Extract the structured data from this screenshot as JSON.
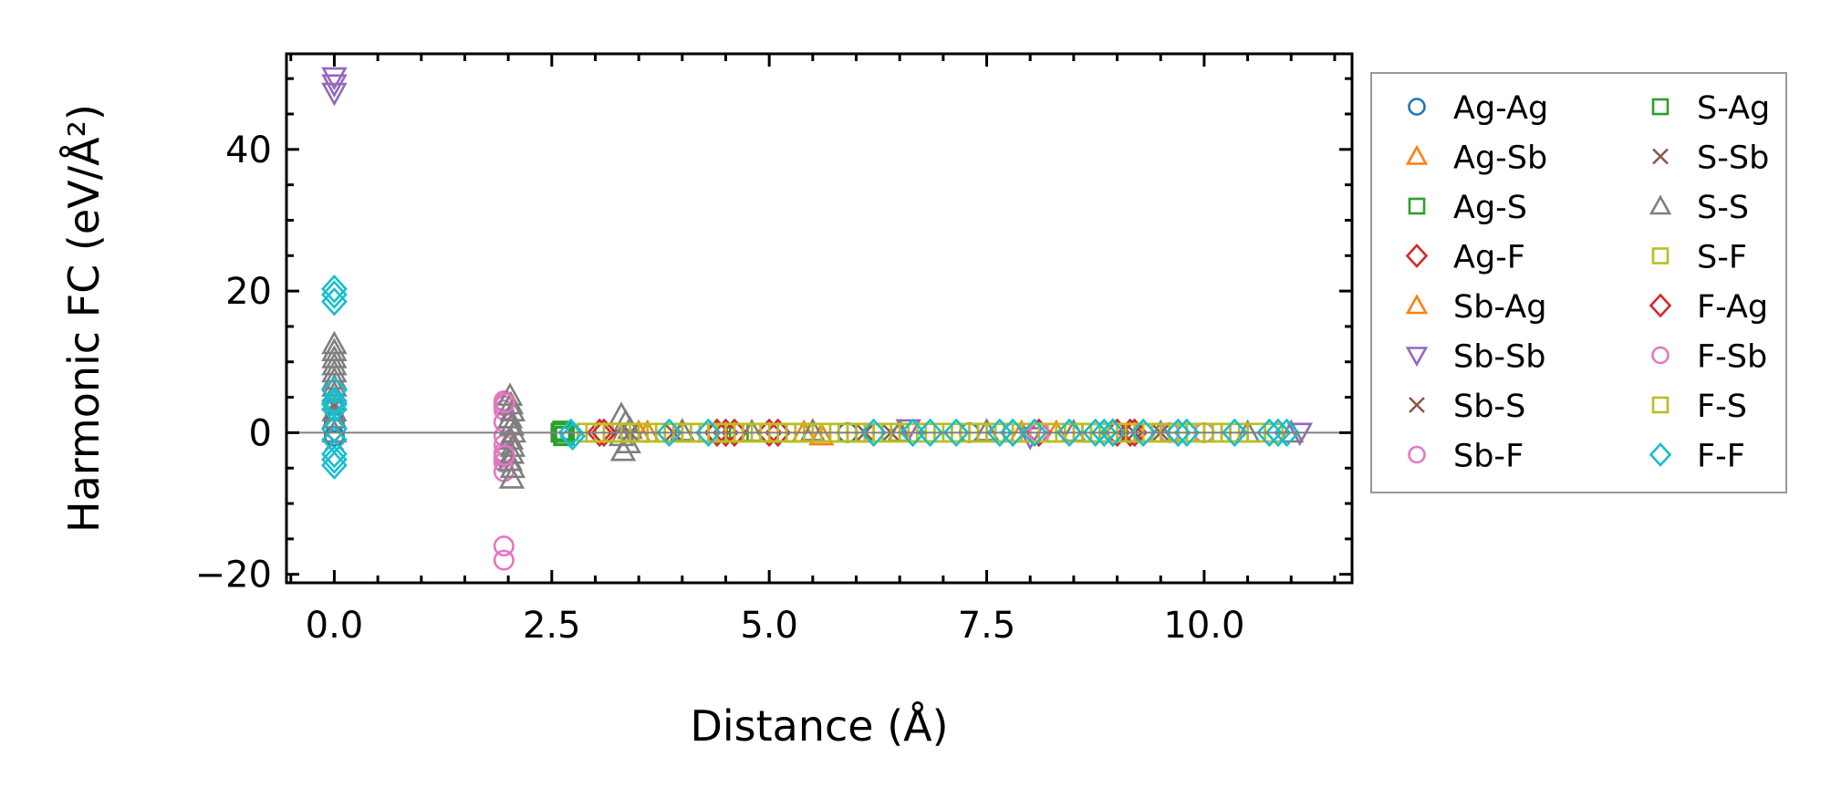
{
  "chart_data": {
    "type": "scatter",
    "title": "",
    "xlabel": "Distance (Å)",
    "ylabel": "Harmonic FC (eV/Å²)",
    "xlim": [
      -0.55,
      11.7
    ],
    "ylim": [
      -21.2,
      53.5
    ],
    "xticks": [
      0.0,
      2.5,
      5.0,
      7.5,
      10.0
    ],
    "xtick_labels": [
      "0.0",
      "2.5",
      "5.0",
      "7.5",
      "10.0"
    ],
    "yticks": [
      -20,
      0,
      20,
      40
    ],
    "ytick_labels": [
      "−20",
      "0",
      "20",
      "40"
    ],
    "zero_line": true,
    "grid": false,
    "legend_placement": "outside-right",
    "series": [
      {
        "name": "Ag-Ag",
        "marker": "circle",
        "color": "#1f77b4",
        "points": [
          [
            0,
            1.5
          ],
          [
            0,
            -0.5
          ],
          [
            4.4,
            0
          ],
          [
            5.9,
            0
          ],
          [
            7.3,
            0
          ]
        ]
      },
      {
        "name": "Ag-Sb",
        "marker": "triangle-up",
        "color": "#ff7f0e",
        "points": [
          [
            3.5,
            0
          ],
          [
            5.6,
            -0.4
          ],
          [
            7.9,
            0
          ]
        ]
      },
      {
        "name": "Ag-S",
        "marker": "square",
        "color": "#2ca02c",
        "points": [
          [
            2.62,
            0.3
          ],
          [
            2.65,
            -0.4
          ],
          [
            4.65,
            0
          ],
          [
            6.0,
            0
          ]
        ]
      },
      {
        "name": "Ag-F",
        "marker": "diamond",
        "color": "#d62728",
        "points": [
          [
            3.05,
            0
          ],
          [
            4.4,
            0
          ],
          [
            4.5,
            0
          ],
          [
            5.0,
            0
          ],
          [
            5.1,
            0
          ],
          [
            8.95,
            0
          ],
          [
            9.15,
            0
          ]
        ]
      },
      {
        "name": "Sb-Ag",
        "marker": "triangle-up",
        "color": "#ff7f0e",
        "points": [
          [
            3.6,
            0
          ],
          [
            5.4,
            0
          ],
          [
            8.3,
            0
          ]
        ]
      },
      {
        "name": "Sb-Sb",
        "marker": "triangle-down",
        "color": "#9467bd",
        "points": [
          [
            0,
            50.2
          ],
          [
            0,
            49.2
          ],
          [
            0,
            48
          ],
          [
            6.6,
            0.5
          ],
          [
            8.0,
            -0.6
          ],
          [
            11.1,
            0
          ]
        ]
      },
      {
        "name": "Sb-S",
        "marker": "x",
        "color": "#8c564b",
        "points": [
          [
            0,
            3.8
          ],
          [
            0,
            -1.2
          ],
          [
            3.9,
            0
          ],
          [
            6.1,
            0
          ],
          [
            9.5,
            0
          ]
        ]
      },
      {
        "name": "Sb-F",
        "marker": "circle",
        "color": "#e377c2",
        "points": [
          [
            1.95,
            4.5
          ],
          [
            1.95,
            3.8
          ],
          [
            1.95,
            3.2
          ],
          [
            1.95,
            1.5
          ],
          [
            1.95,
            -0.5
          ],
          [
            1.95,
            -1.7
          ],
          [
            1.95,
            -2.8
          ],
          [
            1.95,
            -3.5
          ],
          [
            1.95,
            -4.2
          ],
          [
            1.95,
            -5.5
          ],
          [
            1.95,
            -16
          ],
          [
            1.95,
            -18
          ]
        ]
      },
      {
        "name": "S-Ag",
        "marker": "square",
        "color": "#2ca02c",
        "points": [
          [
            2.6,
            0
          ],
          [
            2.63,
            -0.5
          ],
          [
            5.3,
            0
          ],
          [
            8.7,
            0
          ]
        ]
      },
      {
        "name": "S-Sb",
        "marker": "x",
        "color": "#8c564b",
        "points": [
          [
            3.4,
            0
          ],
          [
            6.4,
            0
          ],
          [
            9.2,
            0
          ]
        ]
      },
      {
        "name": "S-S",
        "marker": "triangle-up",
        "color": "#7f7f7f",
        "points": [
          [
            0,
            12.5
          ],
          [
            0,
            11.5
          ],
          [
            0,
            10.5
          ],
          [
            0,
            9.5
          ],
          [
            0,
            8.5
          ],
          [
            0,
            7.5
          ],
          [
            0,
            6.5
          ],
          [
            0,
            5.5
          ],
          [
            0,
            4.5
          ],
          [
            0,
            3
          ],
          [
            0,
            2
          ],
          [
            0,
            0
          ],
          [
            2.02,
            5.2
          ],
          [
            2.03,
            4
          ],
          [
            2.05,
            3
          ],
          [
            2.02,
            2
          ],
          [
            2.04,
            1
          ],
          [
            2.06,
            0
          ],
          [
            2.03,
            -1
          ],
          [
            2.05,
            -2
          ],
          [
            2.04,
            -3
          ],
          [
            2.02,
            -4
          ],
          [
            2.05,
            -5
          ],
          [
            2.04,
            -6.5
          ],
          [
            3.3,
            2.5
          ],
          [
            3.35,
            1.5
          ],
          [
            3.4,
            0.5
          ],
          [
            3.3,
            -0.5
          ],
          [
            3.38,
            -1.5
          ],
          [
            3.32,
            -2.6
          ],
          [
            4.0,
            0.2
          ],
          [
            4.8,
            0.1
          ],
          [
            5.5,
            0.2
          ],
          [
            6.5,
            0.1
          ],
          [
            7.5,
            0.2
          ],
          [
            8.5,
            0.1
          ],
          [
            9.5,
            0
          ],
          [
            10.5,
            0
          ],
          [
            11.0,
            0
          ]
        ]
      },
      {
        "name": "S-F",
        "marker": "square",
        "color": "#bcbd22",
        "points": [
          [
            2.9,
            0
          ],
          [
            3.1,
            0
          ],
          [
            3.3,
            0
          ],
          [
            3.5,
            0
          ],
          [
            3.7,
            0
          ],
          [
            3.9,
            0
          ],
          [
            4.1,
            0
          ],
          [
            4.3,
            0
          ],
          [
            4.5,
            0
          ],
          [
            4.7,
            0
          ],
          [
            4.9,
            0
          ],
          [
            5.1,
            0
          ],
          [
            5.3,
            0
          ],
          [
            5.5,
            0
          ],
          [
            5.7,
            0
          ],
          [
            5.9,
            0
          ],
          [
            6.1,
            0
          ],
          [
            6.3,
            0
          ],
          [
            6.5,
            0
          ],
          [
            6.7,
            0
          ],
          [
            6.9,
            0
          ],
          [
            7.1,
            0
          ],
          [
            7.3,
            0
          ],
          [
            7.5,
            0
          ],
          [
            7.7,
            0
          ],
          [
            7.9,
            0
          ],
          [
            8.1,
            0
          ],
          [
            8.3,
            0
          ],
          [
            8.5,
            0
          ],
          [
            8.7,
            0
          ],
          [
            8.9,
            0
          ],
          [
            9.1,
            0
          ],
          [
            9.3,
            0
          ],
          [
            9.5,
            0
          ],
          [
            9.7,
            0
          ],
          [
            9.9,
            0
          ],
          [
            10.1,
            0
          ],
          [
            10.3,
            0
          ]
        ]
      },
      {
        "name": "F-Ag",
        "marker": "diamond",
        "color": "#d62728",
        "points": [
          [
            3.1,
            0
          ],
          [
            4.6,
            0
          ],
          [
            8.1,
            0
          ],
          [
            9.0,
            0
          ],
          [
            9.2,
            0
          ]
        ]
      },
      {
        "name": "F-Sb",
        "marker": "circle",
        "color": "#e377c2",
        "points": [
          [
            1.96,
            4.2
          ],
          [
            1.96,
            -3.2
          ],
          [
            8.1,
            0
          ],
          [
            9.6,
            0
          ],
          [
            10.0,
            0
          ]
        ]
      },
      {
        "name": "F-S",
        "marker": "square",
        "color": "#bcbd22",
        "points": [
          [
            3.0,
            0
          ],
          [
            3.2,
            0
          ],
          [
            3.4,
            0
          ],
          [
            3.6,
            0
          ],
          [
            3.8,
            0
          ],
          [
            4.0,
            0
          ],
          [
            4.2,
            0
          ],
          [
            4.4,
            0
          ],
          [
            4.6,
            0
          ],
          [
            4.8,
            0
          ],
          [
            5.0,
            0
          ],
          [
            5.2,
            0
          ],
          [
            5.4,
            0
          ],
          [
            5.6,
            0
          ],
          [
            5.8,
            0
          ],
          [
            6.0,
            0
          ],
          [
            6.2,
            0
          ],
          [
            6.4,
            0
          ],
          [
            6.6,
            0
          ],
          [
            6.8,
            0
          ],
          [
            7.0,
            0
          ],
          [
            7.2,
            0
          ],
          [
            7.4,
            0
          ],
          [
            7.6,
            0
          ],
          [
            7.8,
            0
          ],
          [
            8.0,
            0
          ],
          [
            8.2,
            0
          ],
          [
            8.4,
            0
          ],
          [
            8.6,
            0
          ],
          [
            8.8,
            0
          ],
          [
            9.0,
            0
          ],
          [
            9.2,
            0
          ],
          [
            9.4,
            0
          ],
          [
            9.6,
            0
          ],
          [
            9.8,
            0
          ],
          [
            10.0,
            0
          ],
          [
            10.2,
            0
          ],
          [
            10.4,
            0
          ],
          [
            10.6,
            0
          ],
          [
            10.8,
            0
          ]
        ]
      },
      {
        "name": "F-F",
        "marker": "diamond",
        "color": "#17becf",
        "points": [
          [
            0,
            20.3
          ],
          [
            0,
            19.5
          ],
          [
            0,
            18.5
          ],
          [
            0,
            6
          ],
          [
            0,
            4.5
          ],
          [
            0,
            4
          ],
          [
            0,
            3.3
          ],
          [
            0,
            0.5
          ],
          [
            0,
            -1
          ],
          [
            0,
            -3
          ],
          [
            0,
            -3.8
          ],
          [
            0,
            -4.6
          ],
          [
            2.72,
            0
          ],
          [
            2.74,
            -0.5
          ],
          [
            3.85,
            0
          ],
          [
            4.3,
            0
          ],
          [
            6.2,
            0
          ],
          [
            6.65,
            0
          ],
          [
            6.85,
            0
          ],
          [
            7.15,
            0
          ],
          [
            7.65,
            0
          ],
          [
            7.8,
            0
          ],
          [
            8.05,
            0
          ],
          [
            8.45,
            0
          ],
          [
            8.75,
            0
          ],
          [
            8.85,
            0
          ],
          [
            8.95,
            0
          ],
          [
            9.3,
            0
          ],
          [
            9.7,
            0
          ],
          [
            9.8,
            0
          ],
          [
            10.35,
            0
          ],
          [
            10.75,
            0
          ],
          [
            10.85,
            0
          ],
          [
            10.95,
            0
          ]
        ]
      }
    ]
  }
}
